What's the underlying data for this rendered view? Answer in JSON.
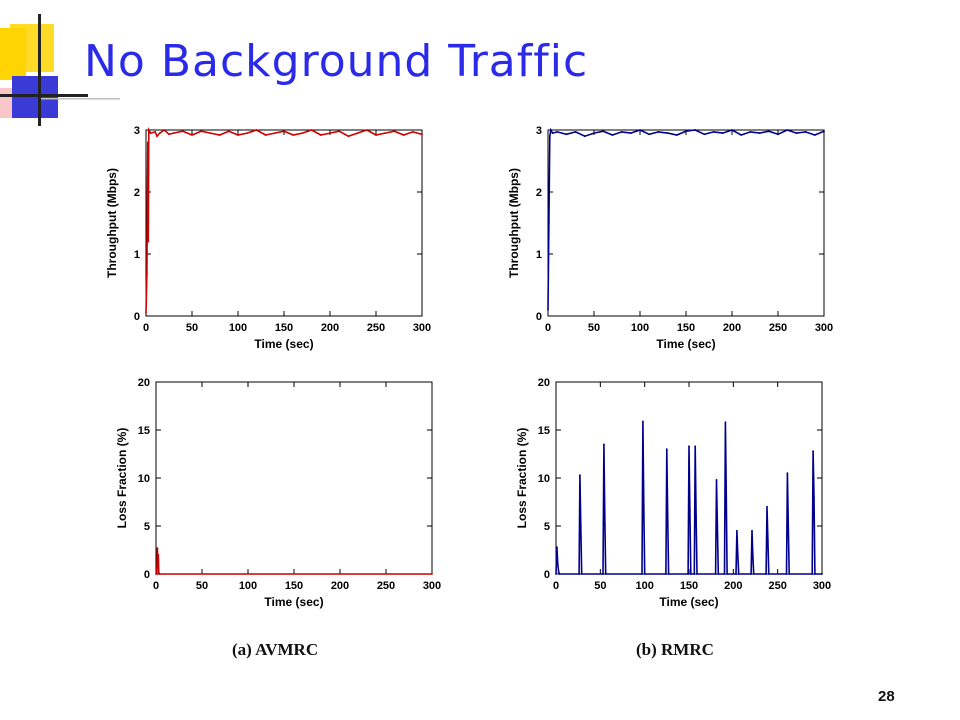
{
  "slide": {
    "title": "No Background Traffic",
    "page_number": "28",
    "caption_left": "(a) AVMRC",
    "caption_right": "(b) RMRC"
  },
  "colors": {
    "title": "#2a2ae8",
    "avmrc_series": "#cc0000",
    "rmrc_series": "#00008b",
    "deco_yellow": "#ffd400",
    "deco_blue": "#3a3ad6",
    "deco_pink": "#f4a0a0"
  },
  "chart_data": [
    {
      "id": "avmrc-throughput",
      "type": "line",
      "xlabel": "Time (sec)",
      "ylabel": "Throughput (Mbps)",
      "xlim": [
        0,
        300
      ],
      "ylim": [
        0,
        3
      ],
      "xticks": [
        0,
        50,
        100,
        150,
        200,
        250,
        300
      ],
      "yticks": [
        0,
        1,
        2,
        3
      ],
      "grid": false,
      "series": [
        {
          "x": [
            0,
            1,
            1.5,
            2,
            2.5,
            3,
            5,
            10,
            12,
            15,
            20,
            25,
            30,
            40,
            50,
            60,
            70,
            80,
            90,
            100,
            110,
            120,
            130,
            140,
            150,
            160,
            170,
            180,
            190,
            200,
            210,
            220,
            230,
            240,
            250,
            260,
            270,
            280,
            290,
            300
          ],
          "y": [
            0.05,
            0.7,
            2.0,
            2.8,
            1.2,
            3.0,
            2.95,
            2.97,
            2.9,
            2.95,
            3.0,
            2.93,
            2.95,
            2.98,
            2.92,
            2.98,
            2.95,
            2.92,
            2.98,
            2.92,
            2.95,
            3.0,
            2.92,
            2.95,
            2.98,
            2.92,
            2.95,
            3.0,
            2.92,
            2.95,
            2.98,
            2.9,
            2.95,
            3.0,
            2.92,
            2.95,
            2.98,
            2.92,
            2.97,
            2.93
          ]
        }
      ]
    },
    {
      "id": "rmrc-throughput",
      "type": "line",
      "xlabel": "Time (sec)",
      "ylabel": "Throughput (Mbps)",
      "xlim": [
        0,
        300
      ],
      "ylim": [
        0,
        3
      ],
      "xticks": [
        0,
        50,
        100,
        150,
        200,
        250,
        300
      ],
      "yticks": [
        0,
        1,
        2,
        3
      ],
      "grid": false,
      "series": [
        {
          "x": [
            0,
            1,
            2,
            3,
            5,
            10,
            20,
            30,
            40,
            50,
            60,
            70,
            80,
            90,
            100,
            110,
            120,
            130,
            140,
            150,
            160,
            170,
            180,
            190,
            200,
            210,
            220,
            230,
            240,
            250,
            260,
            270,
            280,
            290,
            300
          ],
          "y": [
            0.1,
            1.5,
            2.9,
            3.0,
            2.95,
            2.97,
            2.93,
            2.97,
            2.9,
            2.95,
            2.98,
            2.92,
            2.97,
            2.95,
            3.0,
            2.93,
            2.97,
            2.95,
            2.92,
            2.98,
            3.0,
            2.93,
            2.97,
            2.95,
            3.0,
            2.92,
            2.97,
            2.95,
            2.98,
            2.93,
            3.0,
            2.95,
            2.97,
            2.92,
            2.98
          ]
        }
      ]
    },
    {
      "id": "avmrc-loss",
      "type": "line",
      "xlabel": "Time (sec)",
      "ylabel": "Loss Fraction (%)",
      "xlim": [
        0,
        300
      ],
      "ylim": [
        0,
        20
      ],
      "xticks": [
        0,
        50,
        100,
        150,
        200,
        250,
        300
      ],
      "yticks": [
        0,
        5,
        10,
        15,
        20
      ],
      "grid": false,
      "series": [
        {
          "x": [
            0,
            1,
            1.5,
            2,
            2.5,
            3,
            4,
            300
          ],
          "y": [
            0,
            0,
            2.7,
            1.0,
            2.0,
            0.1,
            0,
            0
          ]
        }
      ]
    },
    {
      "id": "rmrc-loss",
      "type": "line",
      "xlabel": "Time (sec)",
      "ylabel": "Loss Fraction (%)",
      "xlim": [
        0,
        300
      ],
      "ylim": [
        0,
        20
      ],
      "xticks": [
        0,
        50,
        100,
        150,
        200,
        250,
        300
      ],
      "yticks": [
        0,
        5,
        10,
        15,
        20
      ],
      "grid": false,
      "series": [
        {
          "x": [
            0,
            1,
            2,
            3,
            4,
            26,
            27,
            28,
            29,
            53,
            54,
            55,
            56,
            97,
            98,
            99,
            100,
            124,
            125,
            126,
            127,
            149,
            150,
            151,
            152,
            156,
            157,
            158,
            159,
            180,
            181,
            182,
            183,
            190,
            191,
            192,
            193,
            203,
            204,
            205,
            206,
            220,
            221,
            222,
            223,
            237,
            238,
            239,
            240,
            260,
            261,
            262,
            263,
            289,
            290,
            291,
            292,
            300
          ],
          "y": [
            0,
            2.8,
            1.0,
            0.2,
            0,
            0,
            10.3,
            5.0,
            0,
            0,
            13.5,
            6.0,
            0,
            0,
            15.9,
            7.0,
            0,
            0,
            13.0,
            6.0,
            0,
            0,
            13.3,
            6.5,
            0,
            0,
            13.3,
            6.0,
            0,
            0,
            9.8,
            5.0,
            0,
            0,
            15.8,
            9.0,
            0,
            0,
            4.5,
            2.0,
            0,
            0,
            4.5,
            2.0,
            0,
            0,
            7.0,
            3.5,
            0,
            0,
            10.5,
            5.0,
            0,
            0,
            12.8,
            8.0,
            0,
            0
          ]
        }
      ]
    }
  ]
}
